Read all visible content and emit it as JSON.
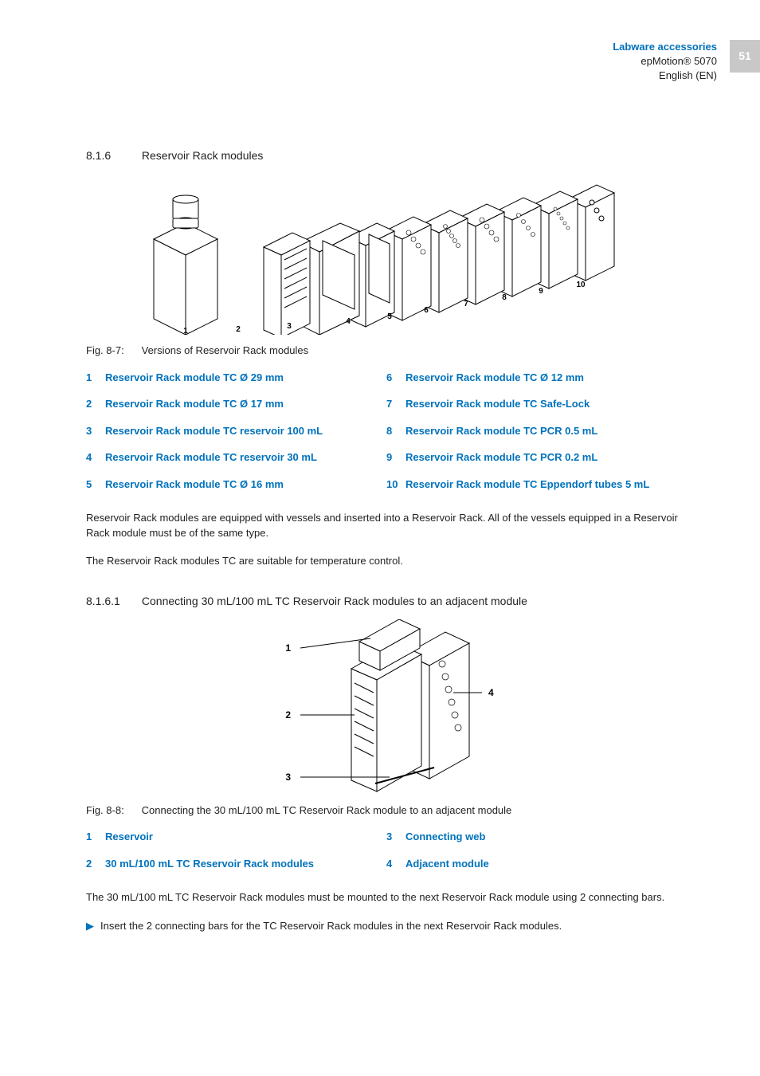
{
  "page": {
    "number": "51"
  },
  "header": {
    "title": "Labware accessories",
    "line2": "epMotion® 5070",
    "line3": "English (EN)"
  },
  "section": {
    "number": "8.1.6",
    "title": "Reservoir Rack modules"
  },
  "fig1": {
    "label": "Fig. 8-7:",
    "caption": "Versions of Reservoir Rack modules",
    "module_labels": [
      "1",
      "2",
      "3",
      "4",
      "5",
      "6",
      "7",
      "8",
      "9",
      "10"
    ]
  },
  "legend": [
    {
      "n": "1",
      "t": "Reservoir Rack module TC Ø 29 mm"
    },
    {
      "n": "6",
      "t": "Reservoir Rack module TC Ø 12 mm"
    },
    {
      "n": "2",
      "t": "Reservoir Rack module TC Ø 17 mm"
    },
    {
      "n": "7",
      "t": "Reservoir Rack module TC Safe-Lock"
    },
    {
      "n": "3",
      "t": "Reservoir Rack module TC reservoir 100 mL"
    },
    {
      "n": "8",
      "t": "Reservoir Rack module TC PCR 0.5 mL"
    },
    {
      "n": "4",
      "t": "Reservoir Rack module TC reservoir 30 mL"
    },
    {
      "n": "9",
      "t": "Reservoir Rack module TC PCR 0.2 mL"
    },
    {
      "n": "5",
      "t": "Reservoir Rack module TC Ø 16 mm"
    },
    {
      "n": "10",
      "t": "Reservoir Rack module TC Eppendorf tubes 5 mL"
    }
  ],
  "para1": "Reservoir Rack modules are equipped with vessels and inserted into a Reservoir Rack. All of the vessels equipped in a Reservoir Rack module must be of the same type.",
  "para2": "The Reservoir Rack modules TC are suitable for temperature control.",
  "subsection": {
    "number": "8.1.6.1",
    "title": "Connecting 30 mL/100 mL TC Reservoir Rack modules to an adjacent module"
  },
  "fig2": {
    "label": "Fig. 8-8:",
    "caption": "Connecting the 30 mL/100 mL TC Reservoir Rack module to an adjacent module",
    "callouts": {
      "l1": "1",
      "l2": "2",
      "l3": "3",
      "l4": "4"
    }
  },
  "legend2": [
    {
      "n": "1",
      "t": "Reservoir"
    },
    {
      "n": "3",
      "t": "Connecting web"
    },
    {
      "n": "2",
      "t": "30 mL/100 mL TC Reservoir Rack modules"
    },
    {
      "n": "4",
      "t": "Adjacent module"
    }
  ],
  "para3": "The 30 mL/100 mL TC Reservoir Rack modules must be mounted to the next Reservoir Rack module using 2 connecting bars.",
  "bullet1": "Insert the 2 connecting bars for the TC Reservoir Rack modules in the next Reservoir Rack modules.",
  "style": {
    "accent_color": "#0072bc",
    "text_color": "#222222",
    "tab_bg": "#c8c8c8",
    "tab_fg": "#ffffff",
    "line_color": "#000000",
    "fill_color": "#ffffff",
    "callout_color": "#000000"
  }
}
